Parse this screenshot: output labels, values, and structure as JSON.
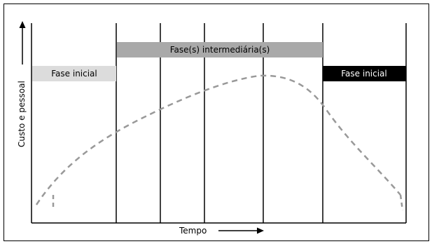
{
  "diagram": {
    "y_axis_label": "Custo e pessoal",
    "x_axis_label": "Tempo",
    "phases": {
      "initial_left": "Fase inicial",
      "intermediate": "Fase(s) intermediária(s)",
      "final_right": "Fase inicial"
    }
  },
  "colors": {
    "initial_left_bar": "#dcdcdc",
    "intermediate_bar": "#a9a9a9",
    "final_right_bar": "#000000",
    "curve": "#999999",
    "lines": "#000000"
  }
}
